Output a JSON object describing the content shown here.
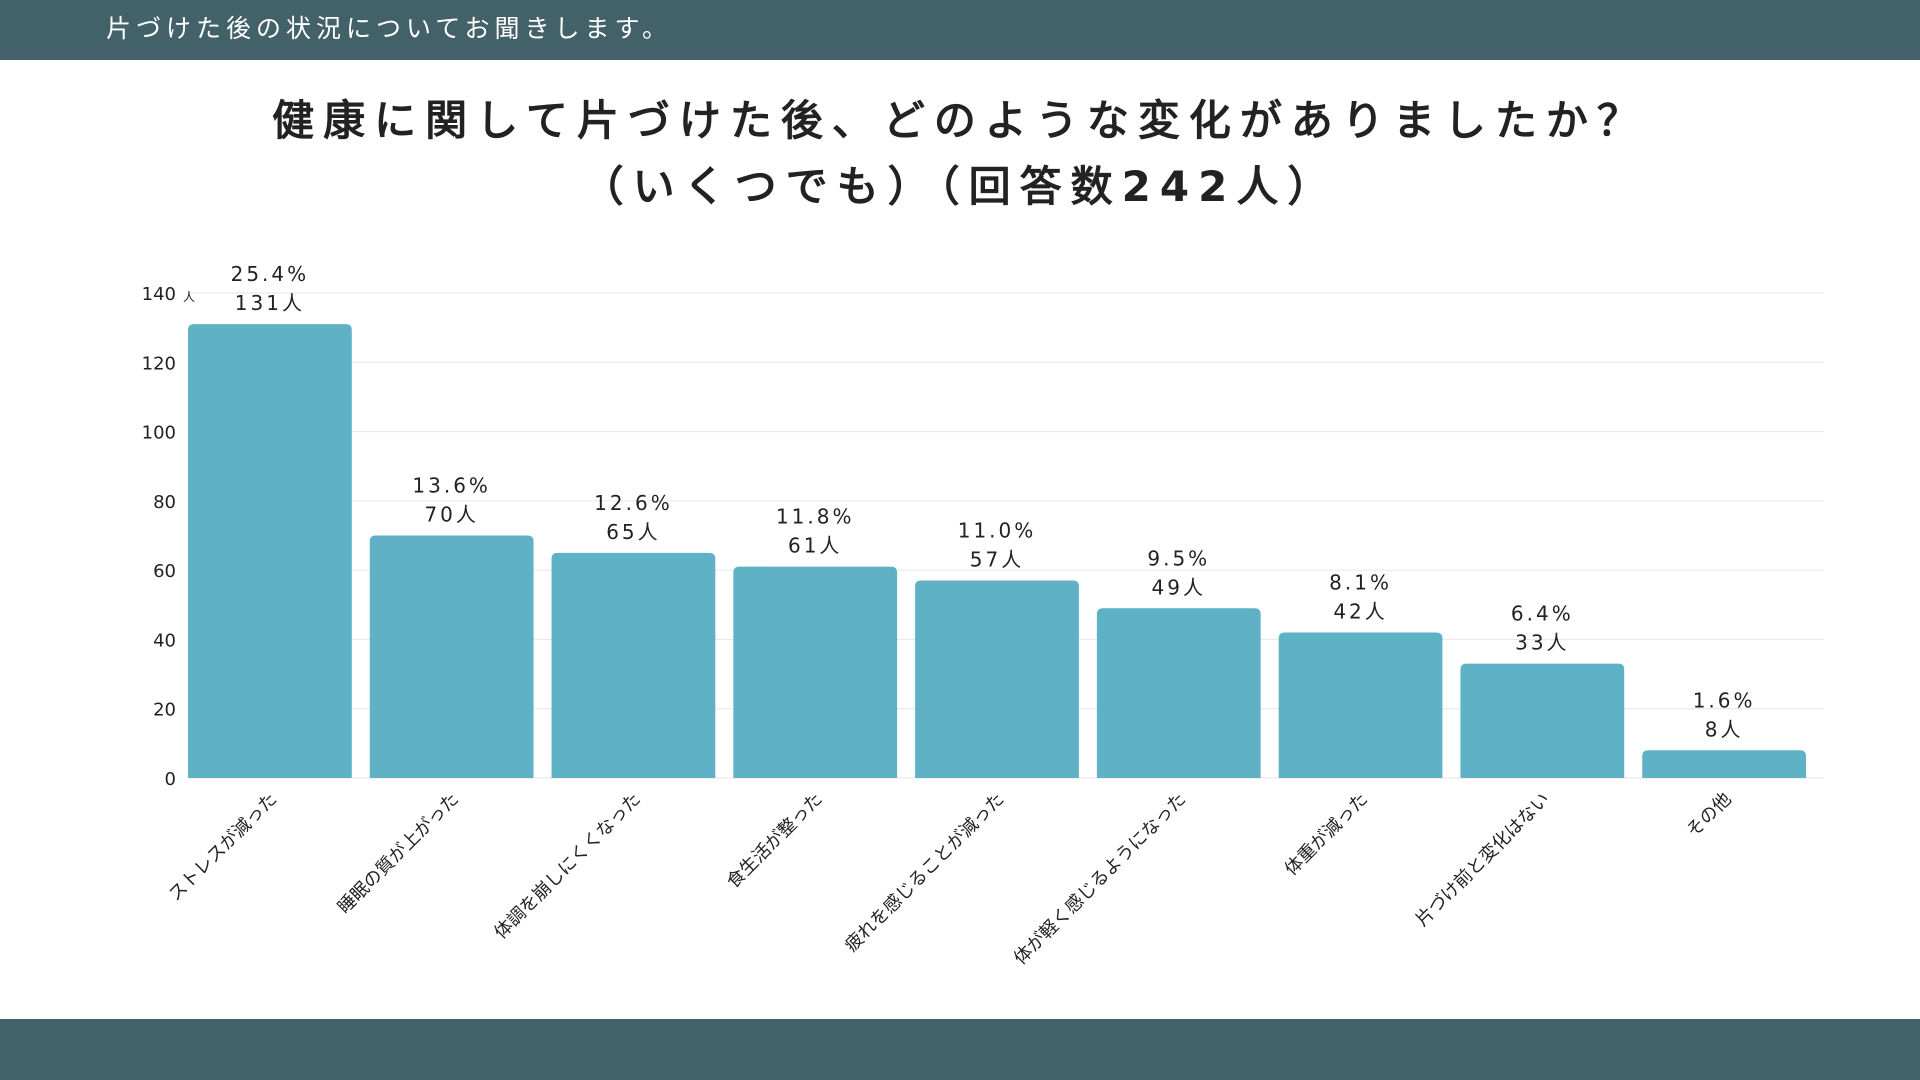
{
  "header": {
    "text": "片づけた後の状況についてお聞きします。"
  },
  "colors": {
    "bar": "#5fb1c5",
    "header_bg": "#436168",
    "grid": "#e6e6e6",
    "text": "#222222"
  },
  "chart_data": {
    "type": "bar",
    "title_lines": [
      "健康に関して片づけた後、どのような変化がありましたか？",
      "（いくつでも）（回答数242人）"
    ],
    "ylim": [
      0,
      140
    ],
    "yticks": [
      "0",
      "20",
      "40",
      "60",
      "80",
      "100",
      "120",
      "140"
    ],
    "y_unit": "人",
    "categories": [
      "ストレスが減った",
      "睡眠の質が上がった",
      "体調を崩しにくくなった",
      "食生活が整った",
      "疲れを感じることが減った",
      "体が軽く感じるようになった",
      "体重が減った",
      "片づけ前と変化はない",
      "その他"
    ],
    "values": [
      131,
      70,
      65,
      61,
      57,
      49,
      42,
      33,
      8
    ],
    "percent_labels": [
      "25.4%",
      "13.6%",
      "12.6%",
      "11.8%",
      "11.0%",
      "9.5%",
      "8.1%",
      "6.4%",
      "1.6%"
    ],
    "count_labels": [
      "131人",
      "70人",
      "65人",
      "61人",
      "57人",
      "49人",
      "42人",
      "33人",
      "8人"
    ]
  }
}
